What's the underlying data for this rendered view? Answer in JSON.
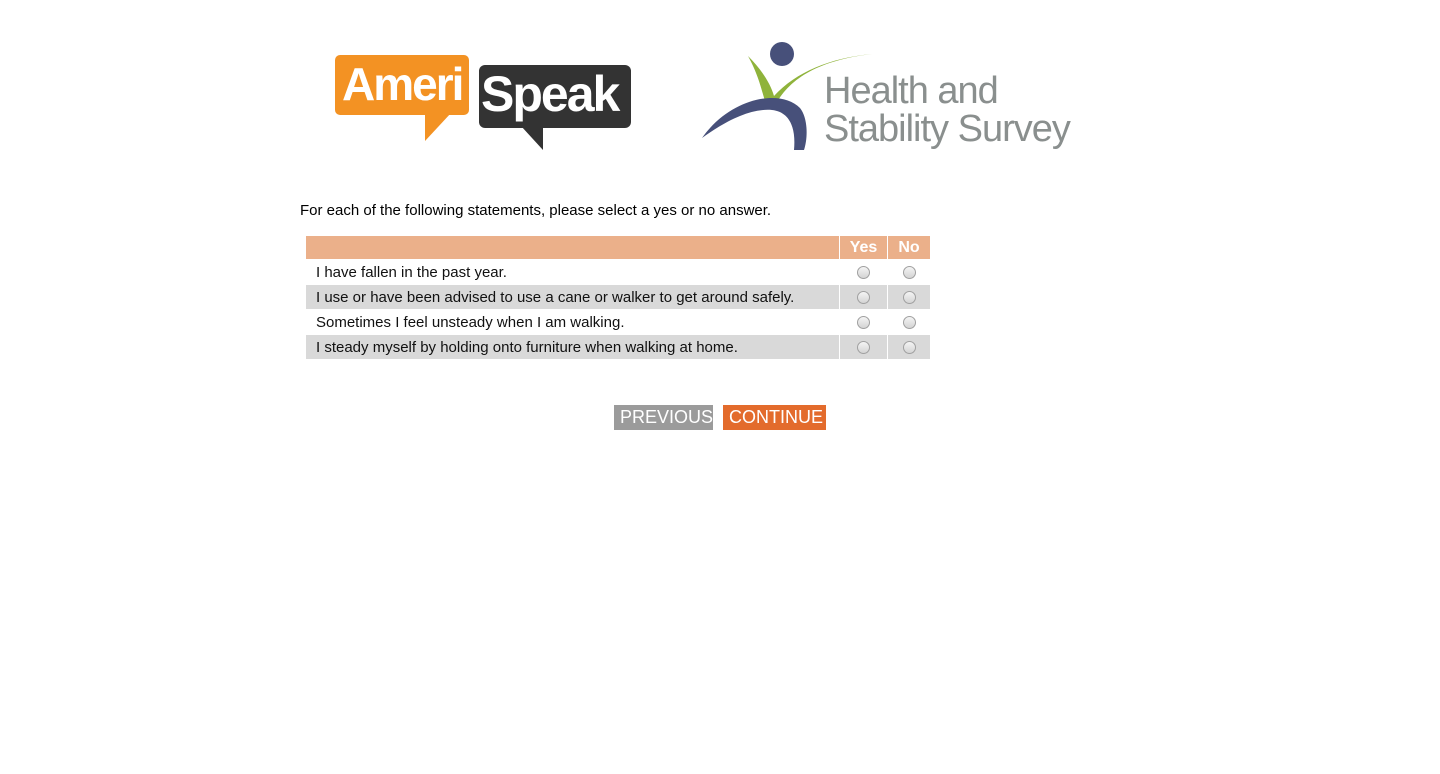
{
  "logos": {
    "amerispeak_left": "Ameri",
    "amerispeak_right": "Speak",
    "survey_line1": "Health and",
    "survey_line2": "Stability Survey"
  },
  "instruction": "For each of the following statements, please select a yes or no answer.",
  "table": {
    "headers": [
      "",
      "Yes",
      "No"
    ],
    "rows": [
      {
        "statement": "I have fallen in the past year.",
        "answer": null
      },
      {
        "statement": "I use or have been advised to use a cane or walker to get around safely.",
        "answer": null
      },
      {
        "statement": "Sometimes I feel unsteady when I am walking.",
        "answer": null
      },
      {
        "statement": "I steady myself by holding onto furniture when walking at home.",
        "answer": null
      }
    ]
  },
  "buttons": {
    "previous": "PREVIOUS",
    "continue": "CONTINUE"
  },
  "colors": {
    "header": "#ebb08a",
    "previous": "#9b9b9b",
    "continue": "#e36b2c",
    "amerispeak_orange": "#f39223"
  }
}
